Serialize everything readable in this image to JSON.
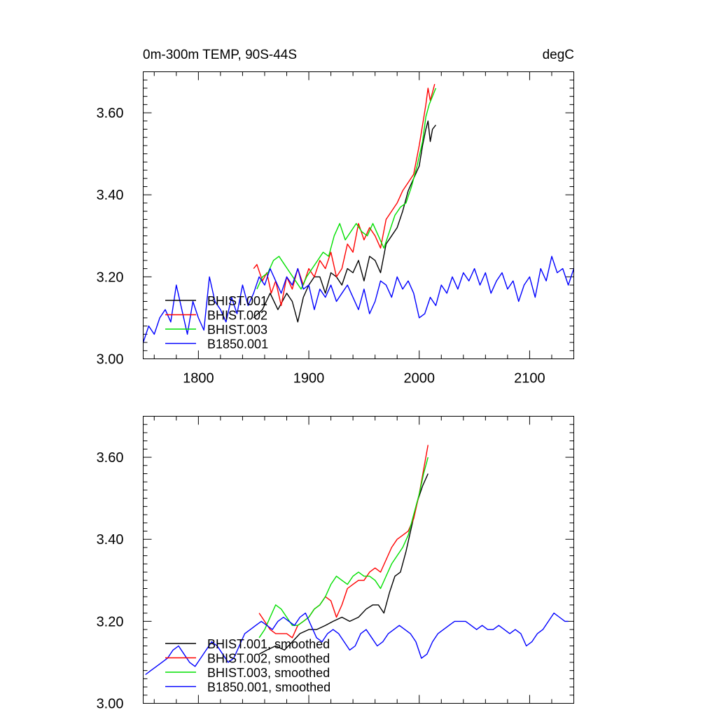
{
  "chart_data": [
    {
      "type": "line",
      "title": "0m-300m TEMP, 90S-44S",
      "units": "degC",
      "xlim": [
        1750,
        2140
      ],
      "ylim": [
        3.0,
        3.7
      ],
      "xticks": [
        1800,
        1900,
        2000,
        2100
      ],
      "xtick_labels": [
        "1800",
        "1900",
        "2000",
        "2100"
      ],
      "yticks": [
        3.0,
        3.2,
        3.4,
        3.6
      ],
      "ytick_labels": [
        "3.00",
        "3.20",
        "3.40",
        "3.60"
      ],
      "legend_position": "lower-left",
      "series": [
        {
          "name": "BHIST.001",
          "color": "#000000",
          "x": [
            1850,
            1858,
            1865,
            1872,
            1880,
            1885,
            1890,
            1895,
            1900,
            1905,
            1910,
            1915,
            1920,
            1925,
            1930,
            1935,
            1940,
            1945,
            1950,
            1955,
            1960,
            1965,
            1970,
            1975,
            1980,
            1985,
            1990,
            1995,
            2000,
            2003,
            2006,
            2008,
            2010,
            2012,
            2015
          ],
          "y": [
            3.1,
            3.12,
            3.16,
            3.12,
            3.16,
            3.14,
            3.09,
            3.15,
            3.18,
            3.2,
            3.2,
            3.16,
            3.21,
            3.2,
            3.18,
            3.22,
            3.21,
            3.24,
            3.19,
            3.25,
            3.24,
            3.21,
            3.28,
            3.3,
            3.32,
            3.36,
            3.41,
            3.44,
            3.47,
            3.52,
            3.56,
            3.58,
            3.53,
            3.56,
            3.57
          ]
        },
        {
          "name": "BHIST.002",
          "color": "#ff0000",
          "x": [
            1850,
            1853,
            1858,
            1862,
            1866,
            1870,
            1875,
            1880,
            1885,
            1890,
            1895,
            1900,
            1905,
            1910,
            1915,
            1920,
            1925,
            1930,
            1935,
            1940,
            1945,
            1950,
            1955,
            1960,
            1965,
            1970,
            1975,
            1980,
            1985,
            1990,
            1995,
            2000,
            2003,
            2006,
            2008,
            2010,
            2012,
            2014
          ],
          "y": [
            3.22,
            3.23,
            3.19,
            3.21,
            3.16,
            3.19,
            3.13,
            3.2,
            3.17,
            3.22,
            3.18,
            3.22,
            3.2,
            3.24,
            3.22,
            3.26,
            3.2,
            3.22,
            3.28,
            3.26,
            3.33,
            3.29,
            3.32,
            3.3,
            3.27,
            3.34,
            3.36,
            3.38,
            3.41,
            3.43,
            3.45,
            3.52,
            3.57,
            3.62,
            3.66,
            3.63,
            3.65,
            3.67
          ]
        },
        {
          "name": "BHIST.003",
          "color": "#00e000",
          "x": [
            1853,
            1858,
            1863,
            1868,
            1873,
            1878,
            1883,
            1888,
            1893,
            1898,
            1903,
            1908,
            1913,
            1918,
            1923,
            1928,
            1933,
            1938,
            1943,
            1948,
            1953,
            1958,
            1963,
            1968,
            1973,
            1978,
            1983,
            1988,
            1993,
            1998,
            2003,
            2006,
            2009,
            2012,
            2015
          ],
          "y": [
            3.17,
            3.2,
            3.21,
            3.24,
            3.25,
            3.23,
            3.21,
            3.19,
            3.17,
            3.2,
            3.22,
            3.24,
            3.26,
            3.25,
            3.3,
            3.33,
            3.29,
            3.31,
            3.33,
            3.31,
            3.3,
            3.33,
            3.3,
            3.27,
            3.31,
            3.35,
            3.37,
            3.38,
            3.42,
            3.47,
            3.53,
            3.59,
            3.62,
            3.64,
            3.66
          ]
        },
        {
          "name": "B1850.001",
          "color": "#0000ff",
          "x": [
            1750,
            1755,
            1760,
            1765,
            1770,
            1775,
            1780,
            1785,
            1790,
            1795,
            1800,
            1805,
            1810,
            1815,
            1820,
            1825,
            1830,
            1835,
            1840,
            1845,
            1850,
            1855,
            1860,
            1865,
            1870,
            1875,
            1880,
            1885,
            1890,
            1895,
            1900,
            1905,
            1910,
            1915,
            1920,
            1925,
            1930,
            1935,
            1940,
            1945,
            1950,
            1955,
            1960,
            1965,
            1970,
            1975,
            1980,
            1985,
            1990,
            1995,
            2000,
            2005,
            2010,
            2015,
            2020,
            2025,
            2030,
            2035,
            2040,
            2045,
            2050,
            2055,
            2060,
            2065,
            2070,
            2075,
            2080,
            2085,
            2090,
            2095,
            2100,
            2105,
            2110,
            2115,
            2120,
            2125,
            2130,
            2135,
            2140
          ],
          "y": [
            3.04,
            3.08,
            3.06,
            3.1,
            3.12,
            3.09,
            3.18,
            3.12,
            3.06,
            3.14,
            3.1,
            3.07,
            3.2,
            3.14,
            3.12,
            3.09,
            3.15,
            3.11,
            3.18,
            3.13,
            3.16,
            3.2,
            3.18,
            3.22,
            3.19,
            3.16,
            3.2,
            3.18,
            3.22,
            3.17,
            3.18,
            3.12,
            3.17,
            3.15,
            3.18,
            3.14,
            3.16,
            3.18,
            3.15,
            3.12,
            3.17,
            3.11,
            3.14,
            3.19,
            3.18,
            3.15,
            3.2,
            3.17,
            3.19,
            3.16,
            3.1,
            3.11,
            3.15,
            3.13,
            3.18,
            3.16,
            3.2,
            3.17,
            3.21,
            3.19,
            3.22,
            3.18,
            3.21,
            3.16,
            3.19,
            3.21,
            3.17,
            3.19,
            3.14,
            3.18,
            3.2,
            3.15,
            3.22,
            3.19,
            3.25,
            3.21,
            3.22,
            3.18,
            3.22
          ]
        }
      ]
    },
    {
      "type": "line",
      "xlim": [
        1750,
        2140
      ],
      "ylim": [
        3.0,
        3.7
      ],
      "xticks": [
        1800,
        1900,
        2000,
        2100
      ],
      "yticks": [
        3.0,
        3.2,
        3.4,
        3.6
      ],
      "ytick_labels": [
        "3.00",
        "3.20",
        "3.40",
        "3.60"
      ],
      "legend_position": "lower-left",
      "series": [
        {
          "name": "BHIST.001, smoothed",
          "color": "#000000",
          "x": [
            1855,
            1862,
            1870,
            1878,
            1885,
            1892,
            1900,
            1907,
            1915,
            1922,
            1930,
            1937,
            1945,
            1952,
            1958,
            1963,
            1968,
            1973,
            1978,
            1983,
            1988,
            1993,
            1998,
            2003,
            2008
          ],
          "y": [
            3.12,
            3.13,
            3.14,
            3.13,
            3.15,
            3.17,
            3.18,
            3.18,
            3.19,
            3.2,
            3.21,
            3.2,
            3.21,
            3.23,
            3.24,
            3.24,
            3.22,
            3.27,
            3.31,
            3.32,
            3.37,
            3.43,
            3.49,
            3.53,
            3.56
          ]
        },
        {
          "name": "BHIST.002, smoothed",
          "color": "#ff0000",
          "x": [
            1855,
            1860,
            1865,
            1870,
            1875,
            1880,
            1885,
            1890,
            1895,
            1900,
            1905,
            1910,
            1915,
            1920,
            1925,
            1930,
            1935,
            1940,
            1945,
            1950,
            1955,
            1960,
            1965,
            1970,
            1975,
            1980,
            1985,
            1990,
            1995,
            2000,
            2004,
            2008
          ],
          "y": [
            3.22,
            3.2,
            3.18,
            3.17,
            3.17,
            3.17,
            3.16,
            3.19,
            3.2,
            3.21,
            3.23,
            3.24,
            3.26,
            3.25,
            3.21,
            3.24,
            3.28,
            3.29,
            3.3,
            3.3,
            3.32,
            3.33,
            3.32,
            3.35,
            3.38,
            3.4,
            3.41,
            3.42,
            3.45,
            3.51,
            3.57,
            3.63
          ]
        },
        {
          "name": "BHIST.003, smoothed",
          "color": "#00e000",
          "x": [
            1855,
            1860,
            1865,
            1870,
            1875,
            1880,
            1885,
            1890,
            1895,
            1900,
            1905,
            1910,
            1915,
            1920,
            1925,
            1930,
            1935,
            1940,
            1945,
            1950,
            1955,
            1960,
            1965,
            1970,
            1975,
            1980,
            1985,
            1990,
            1995,
            2000,
            2004,
            2008
          ],
          "y": [
            3.16,
            3.18,
            3.21,
            3.24,
            3.23,
            3.21,
            3.19,
            3.19,
            3.2,
            3.21,
            3.23,
            3.24,
            3.26,
            3.29,
            3.31,
            3.3,
            3.29,
            3.31,
            3.32,
            3.31,
            3.31,
            3.3,
            3.28,
            3.31,
            3.34,
            3.36,
            3.38,
            3.41,
            3.46,
            3.51,
            3.56,
            3.6
          ]
        },
        {
          "name": "B1850.001, smoothed",
          "color": "#0000ff",
          "x": [
            1752,
            1757,
            1762,
            1767,
            1772,
            1777,
            1782,
            1787,
            1792,
            1797,
            1802,
            1807,
            1812,
            1817,
            1822,
            1827,
            1832,
            1837,
            1842,
            1847,
            1852,
            1857,
            1862,
            1867,
            1872,
            1877,
            1882,
            1887,
            1892,
            1897,
            1902,
            1907,
            1912,
            1917,
            1922,
            1927,
            1932,
            1937,
            1942,
            1947,
            1952,
            1957,
            1962,
            1967,
            1972,
            1977,
            1982,
            1987,
            1992,
            1997,
            2002,
            2007,
            2012,
            2017,
            2022,
            2027,
            2032,
            2037,
            2042,
            2047,
            2052,
            2057,
            2062,
            2067,
            2072,
            2077,
            2082,
            2087,
            2092,
            2097,
            2102,
            2107,
            2112,
            2117,
            2122,
            2127,
            2132,
            2135
          ],
          "y": [
            3.07,
            3.08,
            3.09,
            3.1,
            3.11,
            3.13,
            3.14,
            3.12,
            3.1,
            3.09,
            3.11,
            3.13,
            3.15,
            3.14,
            3.12,
            3.1,
            3.11,
            3.14,
            3.17,
            3.18,
            3.19,
            3.2,
            3.19,
            3.18,
            3.2,
            3.21,
            3.2,
            3.19,
            3.21,
            3.22,
            3.19,
            3.16,
            3.15,
            3.17,
            3.18,
            3.17,
            3.15,
            3.13,
            3.14,
            3.17,
            3.18,
            3.16,
            3.14,
            3.15,
            3.17,
            3.18,
            3.19,
            3.18,
            3.17,
            3.15,
            3.11,
            3.12,
            3.15,
            3.17,
            3.18,
            3.19,
            3.2,
            3.2,
            3.2,
            3.19,
            3.18,
            3.19,
            3.18,
            3.18,
            3.19,
            3.18,
            3.17,
            3.18,
            3.17,
            3.14,
            3.15,
            3.17,
            3.18,
            3.2,
            3.22,
            3.21,
            3.2,
            3.2
          ]
        }
      ]
    }
  ]
}
